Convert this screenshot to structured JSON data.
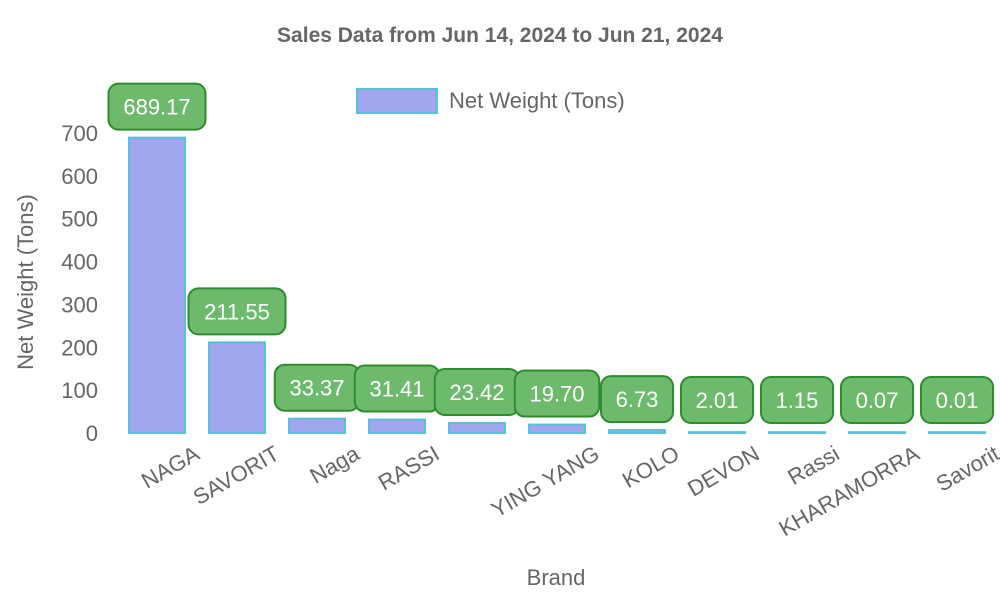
{
  "chart_data": {
    "type": "bar",
    "title": "Sales Data from Jun 14, 2024 to Jun 21, 2024",
    "xlabel": "Brand",
    "ylabel": "Net Weight (Tons)",
    "categories": [
      "NAGA",
      "SAVORIT",
      "Naga",
      "RASSI",
      "",
      "YING YANG",
      "KOLO",
      "DEVON",
      "Rassi",
      "KHARAMORRA",
      "Savorit"
    ],
    "series": [
      {
        "name": "Net Weight (Tons)",
        "values": [
          689.17,
          211.55,
          33.37,
          31.41,
          23.42,
          19.7,
          6.73,
          2.01,
          1.15,
          0.07,
          0.01
        ],
        "labels": [
          "689.17",
          "211.55",
          "33.37",
          "31.41",
          "23.42",
          "19.70",
          "6.73",
          "2.01",
          "1.15",
          "0.07",
          "0.01"
        ]
      }
    ],
    "ylim": [
      0,
      800
    ],
    "yticks": [
      0,
      100,
      200,
      300,
      400,
      500,
      600,
      700
    ],
    "grid": false,
    "legend_position": "top-center",
    "colors": {
      "bar_fill": "#a2a6ee",
      "bar_stroke": "#5bc0d6",
      "label_fill": "#6dba6d",
      "label_stroke": "#2e8b2e",
      "label_text": "#ffffff",
      "axis_text": "#666666",
      "title_text": "#666666"
    }
  }
}
